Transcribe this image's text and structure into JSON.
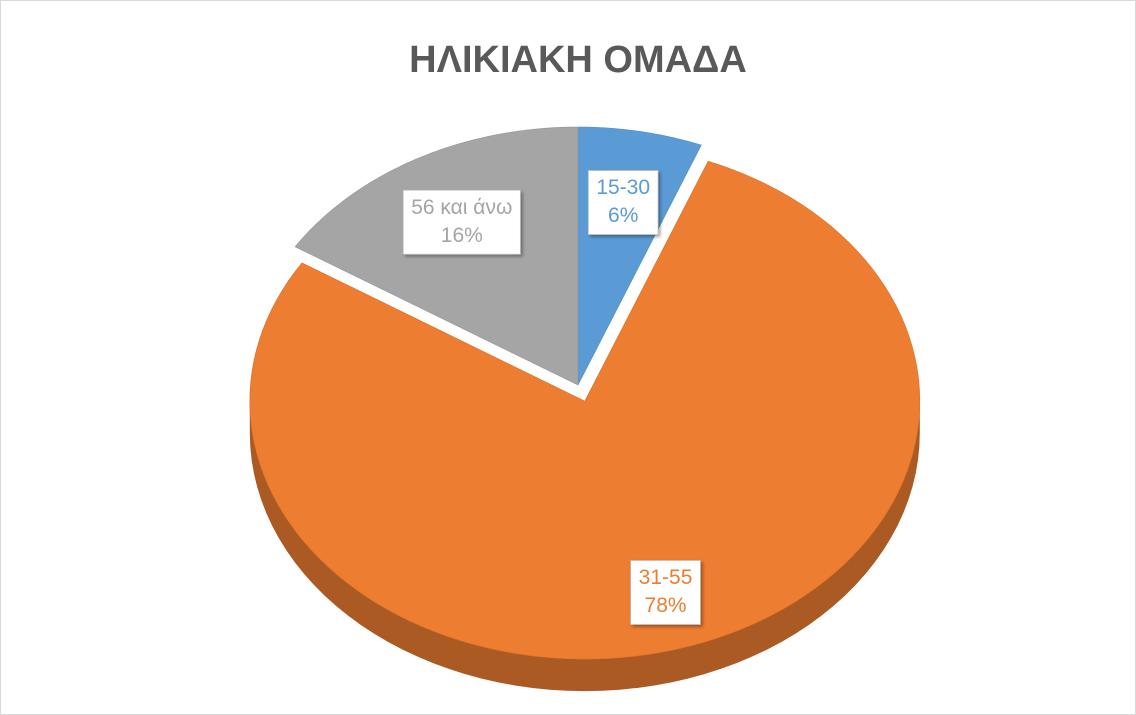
{
  "chart_data": {
    "type": "pie",
    "title": "ΗΛΙΚΙΑΚΗ ΟΜΑΔΑ",
    "categories": [
      "15-30",
      "31-55",
      "56 και άνω"
    ],
    "values": [
      6,
      78,
      16
    ],
    "value_labels": [
      "6%",
      "78%",
      "16%"
    ],
    "colors": [
      "#5b9bd5",
      "#ed7d31",
      "#a5a5a5"
    ]
  }
}
